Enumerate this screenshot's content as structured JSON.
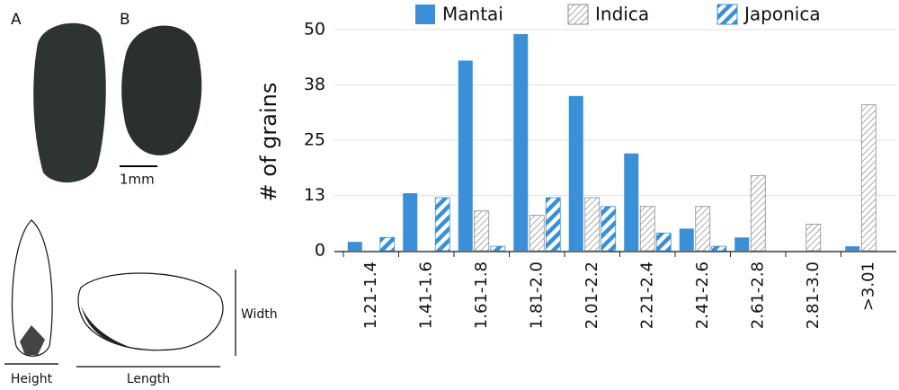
{
  "panel_labels": {
    "a": "A",
    "b": "B",
    "scale": "1mm",
    "height": "Height",
    "length": "Length",
    "width": "Width"
  },
  "chart_data": {
    "type": "bar",
    "y_label": "# of grains",
    "categories": [
      "1.21-1.4",
      "1.41-1.6",
      "1.61-1.8",
      "1.81-2.0",
      "2.01-2.2",
      "2.21-2.4",
      "2.41-2.6",
      "2.61-2.8",
      "2.81-3.0",
      ">3.01"
    ],
    "series": [
      {
        "name": "Mantai",
        "color": "#3a8fd6",
        "fill": "solid",
        "values": [
          2,
          13,
          43,
          49,
          35,
          22,
          5,
          3,
          0,
          1
        ]
      },
      {
        "name": "Indica",
        "color": "#8a8a8a",
        "fill": "hatched",
        "values": [
          0,
          0,
          9,
          8,
          12,
          10,
          10,
          17,
          6,
          33
        ]
      },
      {
        "name": "Japonica",
        "color": "#3a8fd6",
        "fill": "striped",
        "values": [
          3,
          12,
          1,
          12,
          10,
          4,
          1,
          0,
          0,
          0
        ]
      }
    ],
    "ylim": [
      0,
      50
    ],
    "yticks": [
      0,
      {
        "value": 12.5,
        "label": "13"
      },
      25,
      {
        "value": 37.5,
        "label": "38"
      },
      50
    ],
    "grid": true
  }
}
